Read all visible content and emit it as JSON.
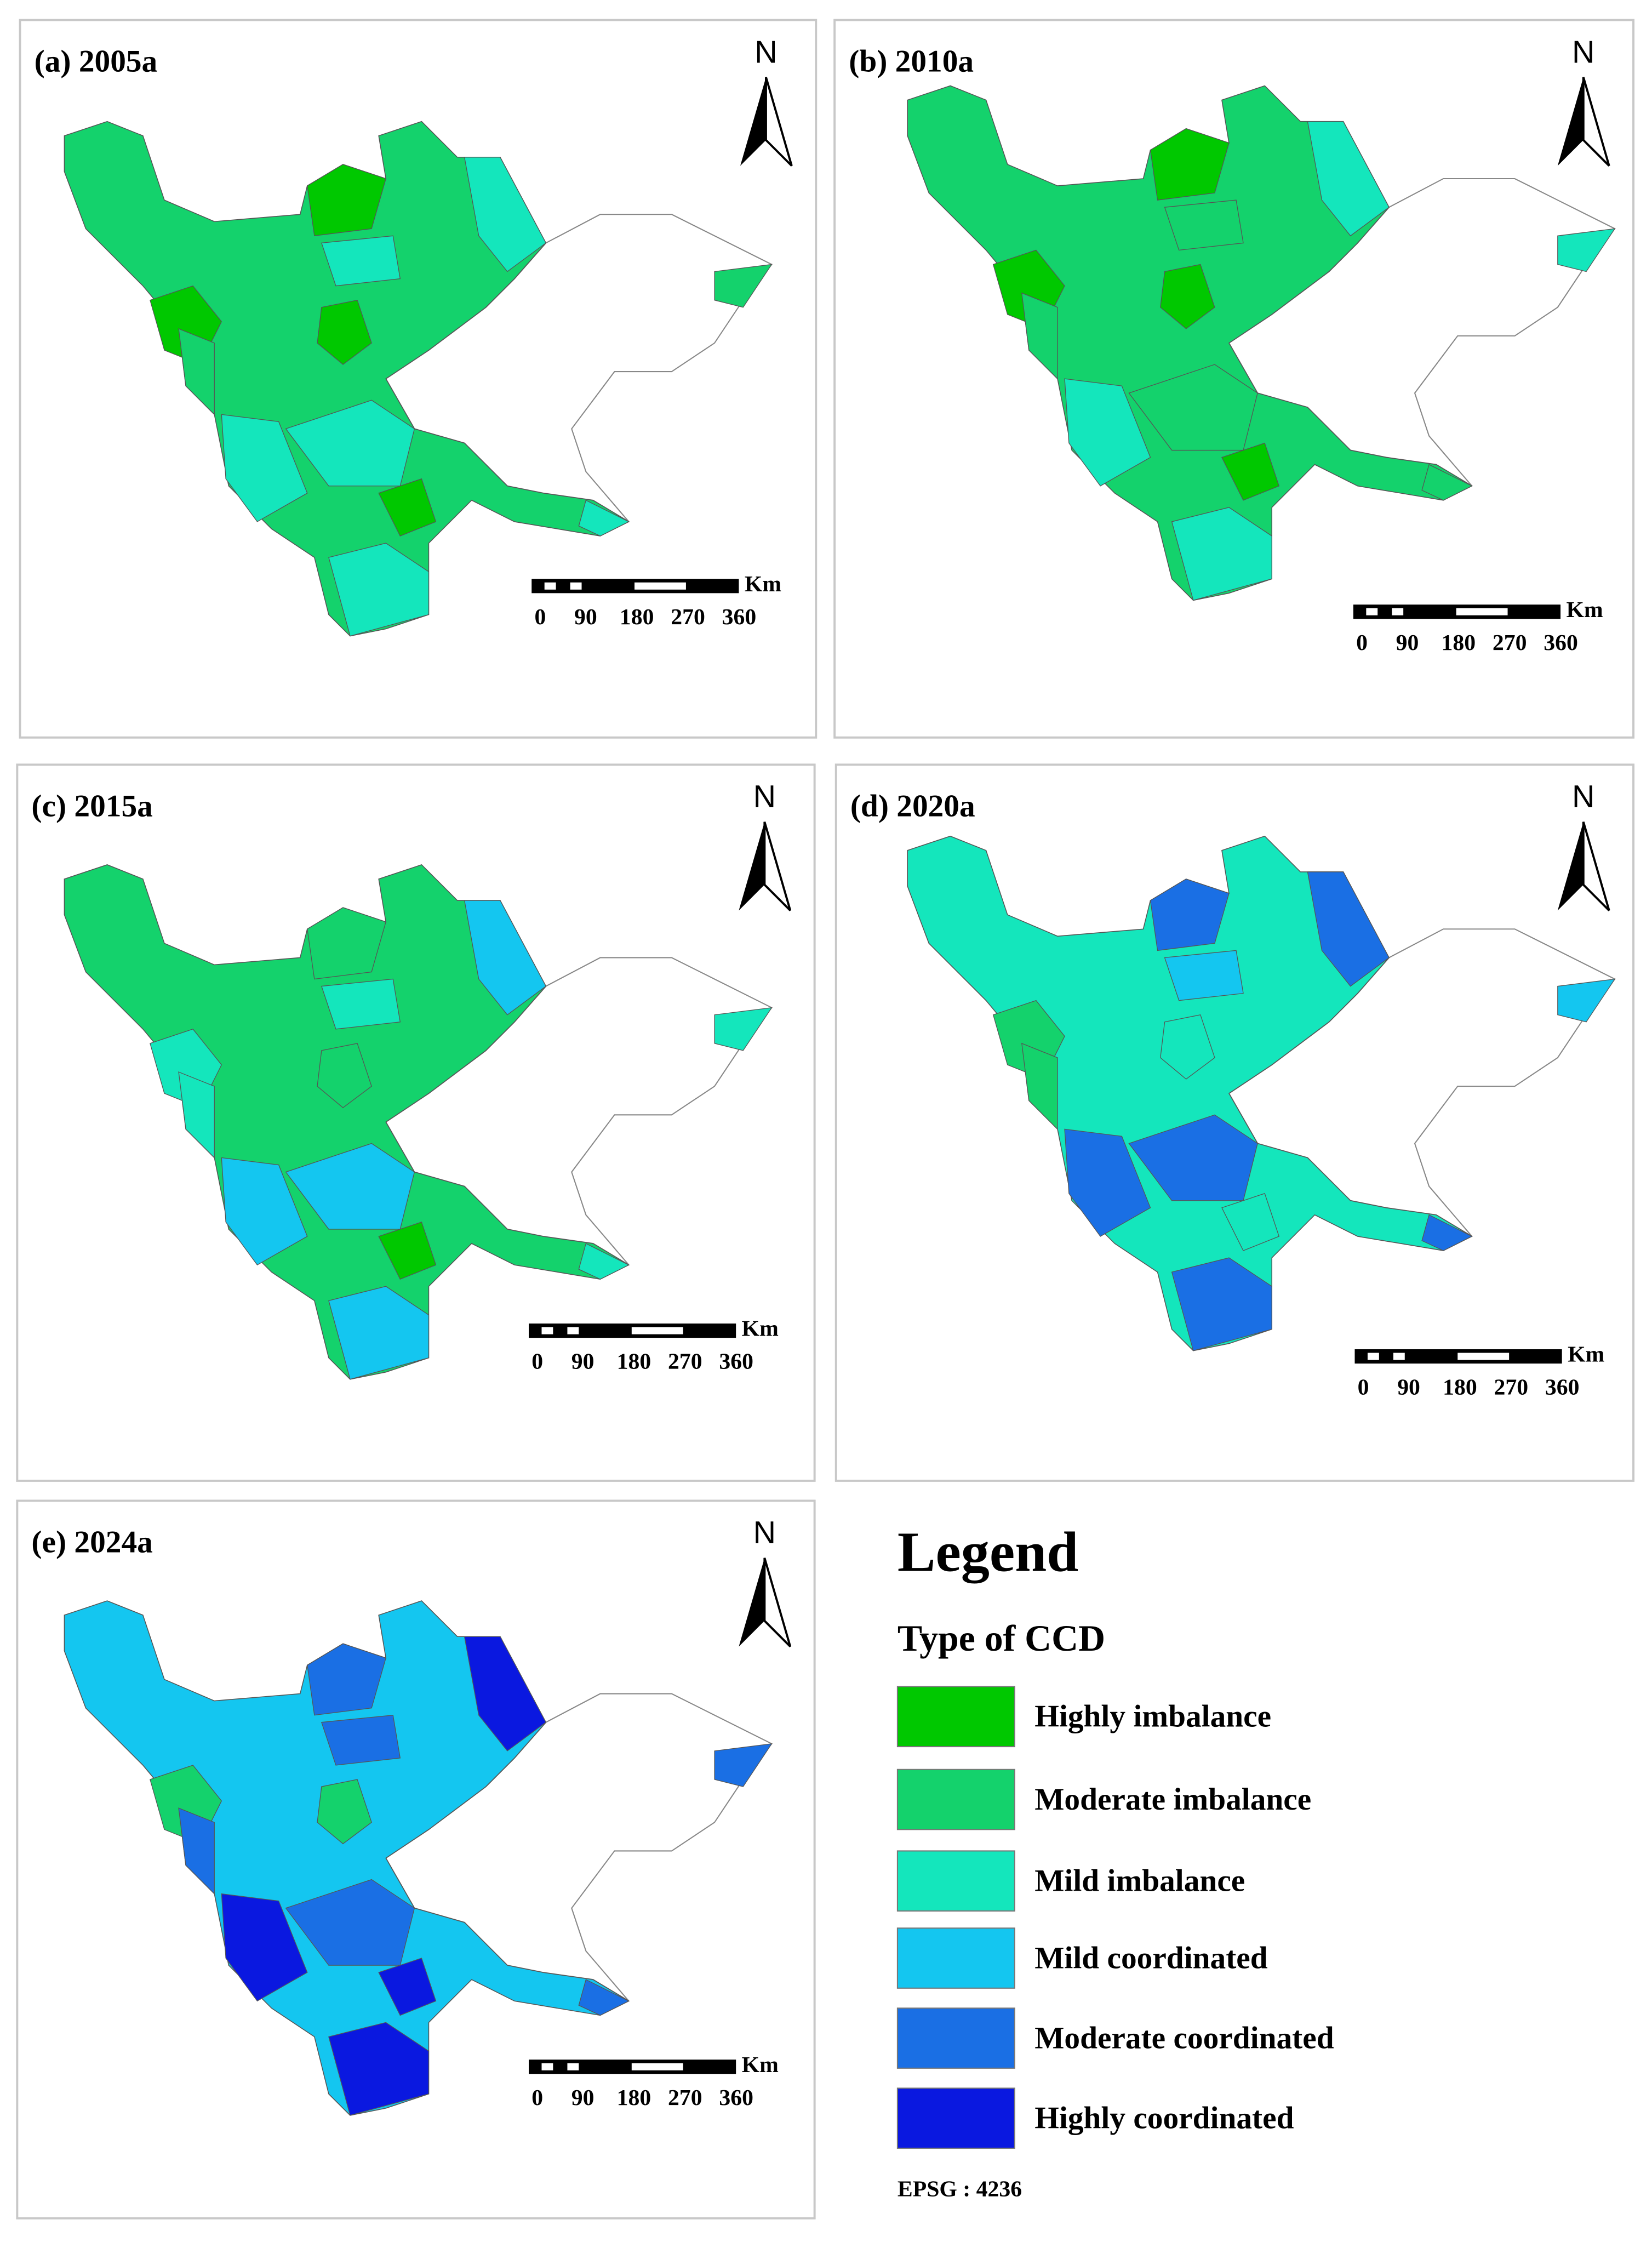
{
  "panels": [
    {
      "title": "(a) 2005a"
    },
    {
      "title": "(b) 2010a"
    },
    {
      "title": "(c) 2015a"
    },
    {
      "title": "(d) 2020a"
    },
    {
      "title": "(e) 2024a"
    }
  ],
  "north_label": "N",
  "scale_bar": {
    "unit": "Km",
    "labels": [
      "0",
      "90",
      "180",
      "270",
      "360"
    ]
  },
  "legend": {
    "title": "Legend",
    "subtitle": "Type of CCD",
    "items": [
      {
        "name": "Highly imbalance",
        "color": "#00c800"
      },
      {
        "name": "Moderate imbalance",
        "color": "#14d26c"
      },
      {
        "name": "Mild imbalance",
        "color": "#14e6bc"
      },
      {
        "name": "Mild coordinated",
        "color": "#14c6f0"
      },
      {
        "name": "Moderate coordinated",
        "color": "#1a6fe4"
      },
      {
        "name": "Highly coordinated",
        "color": "#0a18e0"
      }
    ]
  },
  "crs": "EPSG : 4236"
}
